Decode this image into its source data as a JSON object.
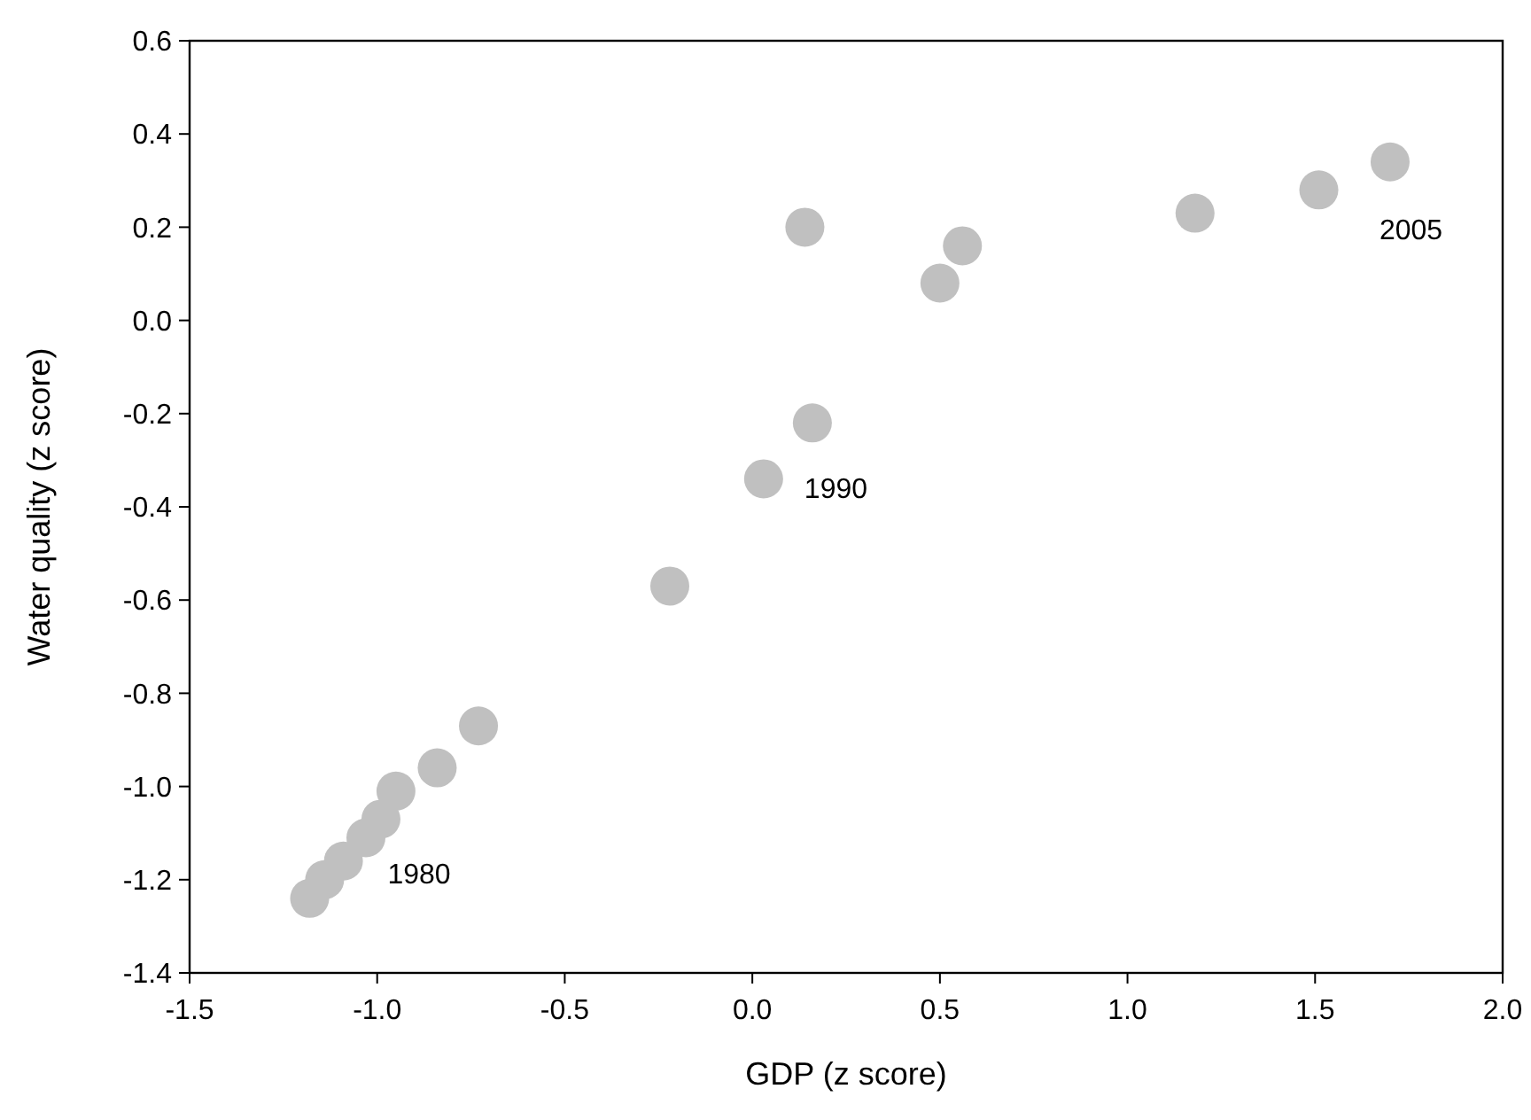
{
  "chart_data": {
    "type": "scatter",
    "xlabel": "GDP (z score)",
    "ylabel": "Water quality (z score)",
    "x": [
      -1.18,
      -1.14,
      -1.09,
      -1.03,
      -0.99,
      -0.95,
      -0.84,
      -0.73,
      -0.22,
      0.03,
      0.16,
      0.14,
      0.5,
      0.56,
      1.18,
      1.51,
      1.7
    ],
    "values": [
      -1.24,
      -1.2,
      -1.16,
      -1.11,
      -1.07,
      -1.01,
      -0.96,
      -0.87,
      -0.57,
      -0.34,
      -0.22,
      0.2,
      0.08,
      0.16,
      0.23,
      0.28,
      0.34
    ],
    "color": "#c0c0c0",
    "marker": "circle",
    "xlim": [
      -1.5,
      2.0
    ],
    "xticks": [
      {
        "value": -1.5,
        "label": "-1.5"
      },
      {
        "value": -1.0,
        "label": "-1.0"
      },
      {
        "value": -0.5,
        "label": "-0.5"
      },
      {
        "value": 0,
        "label": "0.0"
      },
      {
        "value": 0.5,
        "label": "0.5"
      },
      {
        "value": 1.0,
        "label": "1.0"
      },
      {
        "value": 1.5,
        "label": "1.5"
      },
      {
        "value": 2.0,
        "label": "2.0"
      }
    ],
    "ylim": [
      -1.4,
      0.6
    ],
    "yticks": [
      {
        "value": -1.4,
        "label": "-1.4"
      },
      {
        "value": -1.2,
        "label": "-1.2"
      },
      {
        "value": -1.0,
        "label": "-1.0"
      },
      {
        "value": -0.8,
        "label": "-0.8"
      },
      {
        "value": -0.6,
        "label": "-0.6"
      },
      {
        "value": -0.4,
        "label": "-0.4"
      },
      {
        "value": -0.2,
        "label": "-0.2"
      },
      {
        "value": 0,
        "label": "0.0"
      },
      {
        "value": 0.2,
        "label": "0.2"
      },
      {
        "value": 0.4,
        "label": "0.4"
      },
      {
        "value": 0.6,
        "label": "0.6"
      }
    ],
    "grid": false,
    "annotations": [
      {
        "text": "1980",
        "x": -1.18,
        "y": -1.24
      },
      {
        "text": "1990",
        "x": 0.03,
        "y": -0.34
      },
      {
        "text": "2005",
        "x": 1.7,
        "y": 0.34
      }
    ]
  }
}
